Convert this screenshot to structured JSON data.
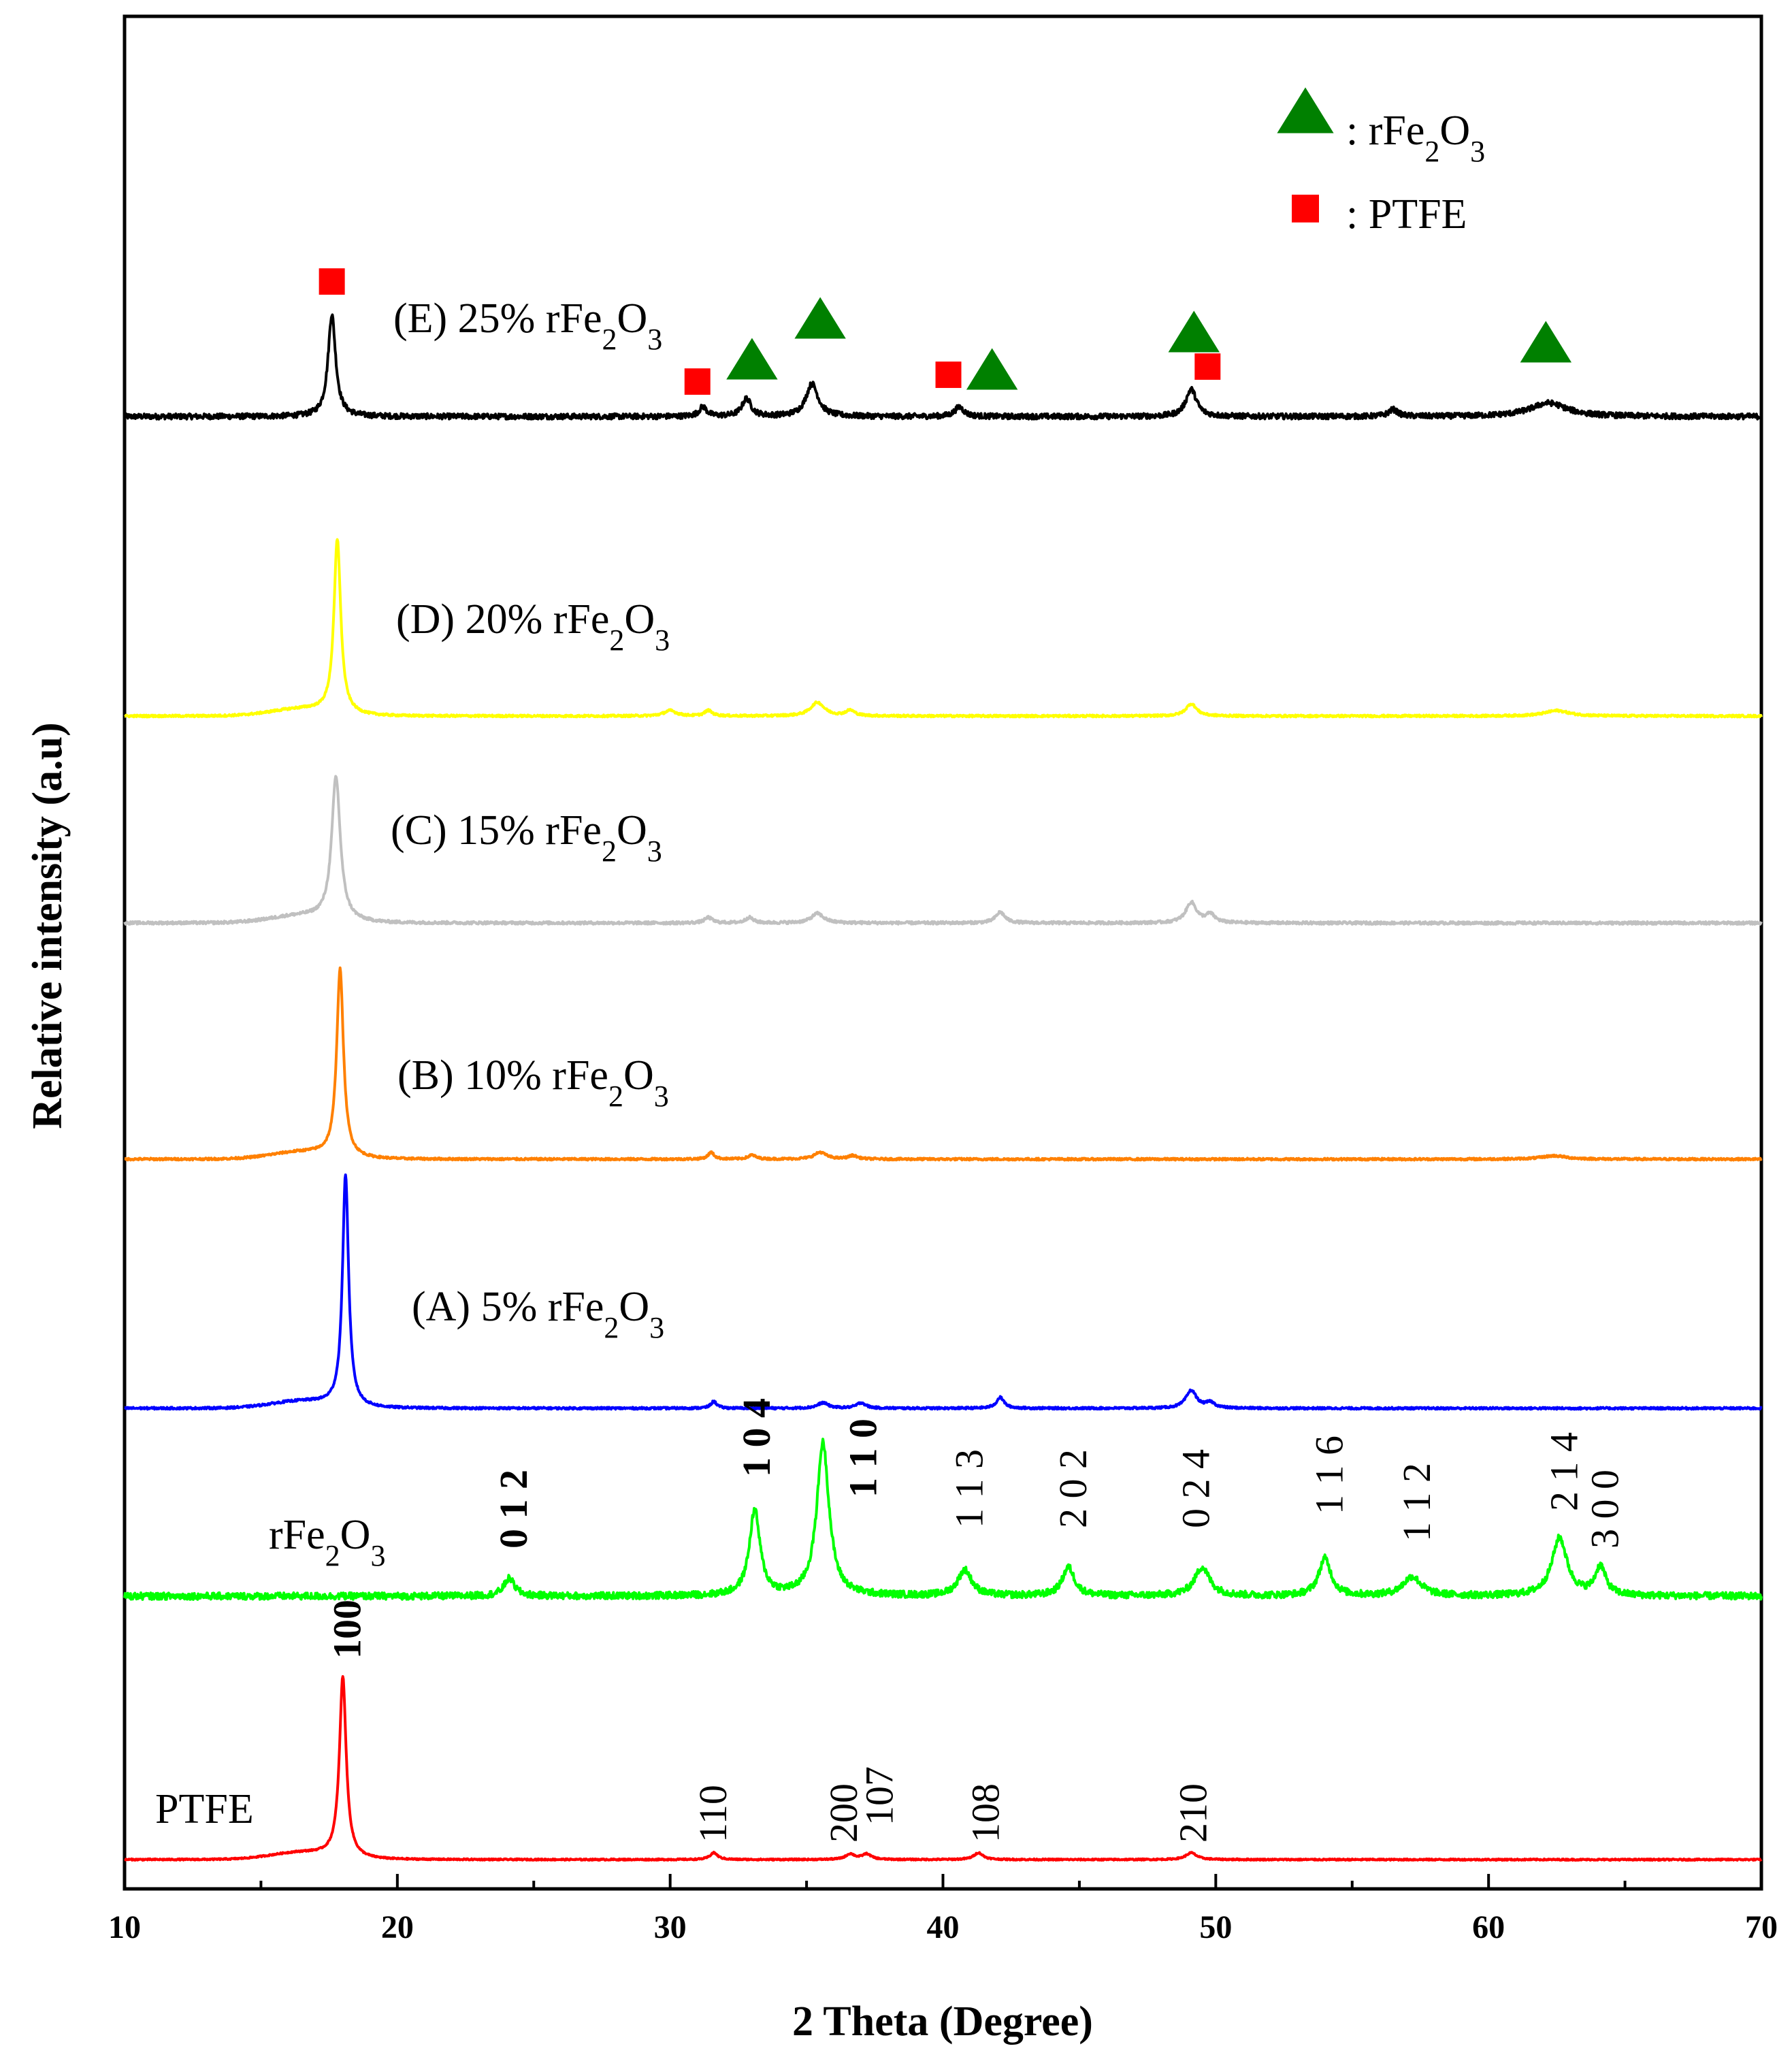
{
  "chart_data": {
    "type": "line",
    "title": "",
    "xlabel": "2 Theta (Degree)",
    "ylabel": "Relative intensity (a.u)",
    "xlim": [
      10,
      70
    ],
    "x_ticks": [
      "10",
      "20",
      "30",
      "40",
      "50",
      "60",
      "70"
    ],
    "series": [
      {
        "key": "E",
        "name": "(E) 25% rFe2O3",
        "label": {
          "main": "(E) 25% rFe",
          "sub1": "2",
          "mid": "O",
          "sub2": "3"
        },
        "color": "#000000",
        "baseline": 0,
        "noise": 8,
        "peaks": [
          [
            17.6,
            150,
            0.25
          ],
          [
            31.2,
            14,
            0.25
          ],
          [
            32.8,
            26,
            0.3
          ],
          [
            35.2,
            48,
            0.4
          ],
          [
            40.6,
            14,
            0.3
          ],
          [
            49.1,
            40,
            0.35
          ],
          [
            56.5,
            10,
            0.3
          ],
          [
            62.2,
            20,
            1.2
          ]
        ],
        "markers": [
          {
            "shape": "square",
            "x": 17.6,
            "y": 195
          },
          {
            "shape": "square",
            "x": 31.0,
            "y": 48
          },
          {
            "shape": "triangle",
            "x": 33.0,
            "y": 85
          },
          {
            "shape": "triangle",
            "x": 35.5,
            "y": 145
          },
          {
            "shape": "square",
            "x": 40.2,
            "y": 58
          },
          {
            "shape": "triangle",
            "x": 41.8,
            "y": 70
          },
          {
            "shape": "triangle",
            "x": 49.2,
            "y": 125
          },
          {
            "shape": "square",
            "x": 49.7,
            "y": 70
          },
          {
            "shape": "triangle",
            "x": 62.1,
            "y": 110
          }
        ]
      },
      {
        "key": "D",
        "name": "(D) 20% rFe2O3",
        "label": {
          "main": "(D) 20% rFe",
          "sub1": "2",
          "mid": "O",
          "sub2": "3"
        },
        "color": "#ffff00",
        "baseline": 0,
        "noise": 3,
        "peaks": [
          [
            17.8,
            255,
            0.22
          ],
          [
            30.0,
            8,
            0.4
          ],
          [
            31.4,
            8,
            0.25
          ],
          [
            35.4,
            20,
            0.45
          ],
          [
            36.6,
            8,
            0.3
          ],
          [
            49.1,
            18,
            0.35
          ],
          [
            62.5,
            8,
            0.8
          ]
        ]
      },
      {
        "key": "C",
        "name": "(C) 15% rFe2O3",
        "label": {
          "main": "(C) 15% rFe",
          "sub1": "2",
          "mid": "O",
          "sub2": "3"
        },
        "color": "#c0c0c0",
        "baseline": 0,
        "noise": 4,
        "peaks": [
          [
            17.75,
            210,
            0.28
          ],
          [
            31.4,
            8,
            0.25
          ],
          [
            32.9,
            8,
            0.25
          ],
          [
            35.4,
            14,
            0.4
          ],
          [
            42.1,
            16,
            0.3
          ],
          [
            49.1,
            30,
            0.35
          ],
          [
            49.8,
            12,
            0.3
          ]
        ]
      },
      {
        "key": "B",
        "name": "(B) 10% rFe2O3",
        "label": {
          "main": "(B) 10% rFe",
          "sub1": "2",
          "mid": "O",
          "sub2": "3"
        },
        "color": "#ff8000",
        "baseline": 0,
        "noise": 3,
        "peaks": [
          [
            17.9,
            275,
            0.22
          ],
          [
            31.5,
            10,
            0.2
          ],
          [
            33.0,
            6,
            0.25
          ],
          [
            35.5,
            10,
            0.4
          ],
          [
            36.7,
            5,
            0.3
          ],
          [
            62.4,
            5,
            0.8
          ]
        ]
      },
      {
        "key": "A",
        "name": "(A) 5% rFe2O3",
        "label": {
          "main": "(A) 5% rFe",
          "sub1": "2",
          "mid": "O",
          "sub2": "3"
        },
        "color": "#0000ff",
        "baseline": 0,
        "noise": 3,
        "peaks": [
          [
            18.1,
            340,
            0.2
          ],
          [
            31.6,
            10,
            0.2
          ],
          [
            35.6,
            8,
            0.35
          ],
          [
            37.0,
            8,
            0.3
          ],
          [
            42.1,
            16,
            0.25
          ],
          [
            49.1,
            26,
            0.35
          ],
          [
            49.8,
            8,
            0.3
          ]
        ]
      },
      {
        "key": "rFe",
        "name": "rFe2O3",
        "label": {
          "main": "rFe",
          "sub1": "2",
          "mid": "O",
          "sub2": "3"
        },
        "color": "#00ff00",
        "baseline": 0,
        "noise": 10,
        "peaks": [
          [
            24.1,
            26,
            0.35
          ],
          [
            33.1,
            125,
            0.35
          ],
          [
            35.6,
            225,
            0.4
          ],
          [
            40.8,
            38,
            0.45
          ],
          [
            44.6,
            42,
            0.4
          ],
          [
            49.5,
            42,
            0.5
          ],
          [
            54.0,
            55,
            0.4
          ],
          [
            57.2,
            28,
            0.6
          ],
          [
            62.6,
            85,
            0.5
          ],
          [
            64.1,
            42,
            0.35
          ]
        ],
        "hkl": [
          {
            "text": "0 1 2",
            "x": 24.3,
            "y": 70,
            "bold": true
          },
          {
            "text": "1 0 4",
            "x": 33.2,
            "y": 175,
            "bold": true
          },
          {
            "text": "1 1 0",
            "x": 37.1,
            "y": 145,
            "bold": true
          },
          {
            "text": "1 1 3",
            "x": 41.0,
            "y": 100,
            "bold": false
          },
          {
            "text": "2 0 2",
            "x": 44.8,
            "y": 100,
            "bold": false
          },
          {
            "text": "0 2 4",
            "x": 49.3,
            "y": 100,
            "bold": false
          },
          {
            "text": "1 1 6",
            "x": 54.2,
            "y": 120,
            "bold": false
          },
          {
            "text": "1 1 2",
            "x": 57.4,
            "y": 80,
            "bold": false
          },
          {
            "text": "2 1 4",
            "x": 62.8,
            "y": 125,
            "bold": false
          },
          {
            "text": "3 0 0",
            "x": 64.3,
            "y": 70,
            "bold": false
          }
        ]
      },
      {
        "key": "PTFE",
        "name": "PTFE",
        "label": {
          "main": "PTFE",
          "sub1": "",
          "mid": "",
          "sub2": ""
        },
        "color": "#ff0000",
        "baseline": 0,
        "noise": 2,
        "peaks": [
          [
            18.0,
            265,
            0.22
          ],
          [
            31.6,
            10,
            0.25
          ],
          [
            36.6,
            8,
            0.3
          ],
          [
            37.2,
            8,
            0.3
          ],
          [
            41.3,
            10,
            0.3
          ],
          [
            49.1,
            10,
            0.35
          ]
        ],
        "hkl": [
          {
            "text": "100",
            "x": 18.2,
            "y": 295,
            "bold": true
          },
          {
            "text": "110",
            "x": 31.6,
            "y": 25,
            "bold": false
          },
          {
            "text": "200",
            "x": 36.4,
            "y": 25,
            "bold": false
          },
          {
            "text": "107",
            "x": 37.7,
            "y": 50,
            "bold": false
          },
          {
            "text": "108",
            "x": 41.6,
            "y": 25,
            "bold": false
          },
          {
            "text": "210",
            "x": 49.2,
            "y": 25,
            "bold": false
          }
        ]
      }
    ],
    "legend": [
      {
        "shape": "triangle",
        "color": "#008000",
        "main": ": rFe",
        "sub1": "2",
        "mid": "O",
        "sub2": "3"
      },
      {
        "shape": "square",
        "color": "#ff0000",
        "main": ": PTFE",
        "sub1": "",
        "mid": "",
        "sub2": ""
      }
    ]
  }
}
